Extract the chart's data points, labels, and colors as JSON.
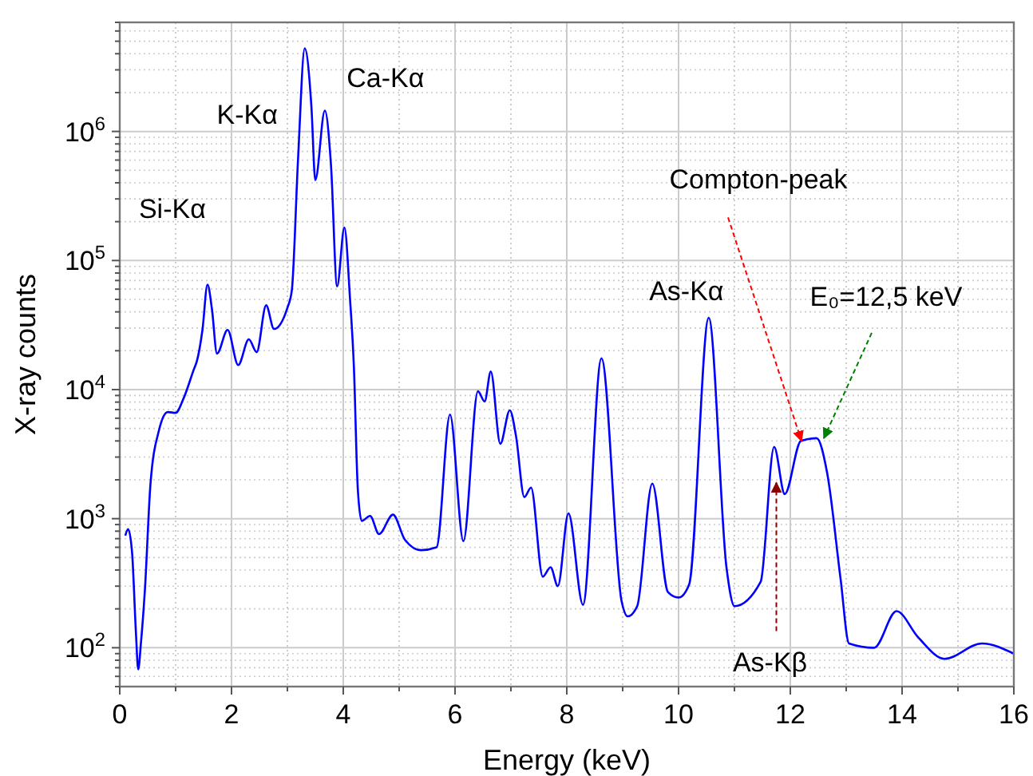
{
  "chart_data": {
    "type": "line",
    "xlabel": "Energy (keV)",
    "ylabel": "X-ray counts",
    "log": "y",
    "grid": true,
    "line_style": "solid",
    "xlim": [
      0,
      16
    ],
    "ylim": [
      50,
      7000000
    ],
    "xticks": [
      0,
      {
        "value": 1,
        "label": null
      },
      2,
      {
        "value": 3,
        "label": null
      },
      4,
      {
        "value": 5,
        "label": null
      },
      6,
      {
        "value": 7,
        "label": null
      },
      8,
      {
        "value": 9,
        "label": null
      },
      10,
      {
        "value": 11,
        "label": null
      },
      12,
      {
        "value": 13,
        "label": null
      },
      14,
      {
        "value": 15,
        "label": null
      },
      16
    ],
    "yticks": [
      {
        "value": 100,
        "label": "10$^{2}$"
      },
      {
        "value": 1000,
        "label": "10$^{3}$"
      },
      {
        "value": 10000,
        "label": "10$^{4}$"
      },
      {
        "value": 100000,
        "label": "10$^{5}$"
      },
      {
        "value": 1000000,
        "label": "10$^{6}$"
      }
    ],
    "series": [
      {
        "color": "#0000ff",
        "x": [
          0.1,
          0.15,
          0.22,
          0.29,
          0.33,
          0.38,
          0.45,
          0.55,
          0.7,
          0.86,
          1.0,
          1.14,
          1.33,
          1.38,
          1.48,
          1.57,
          1.65,
          1.74,
          1.93,
          2.12,
          2.31,
          2.45,
          2.62,
          2.76,
          3.0,
          3.08,
          3.19,
          3.31,
          3.43,
          3.5,
          3.67,
          3.78,
          3.89,
          4.02,
          4.12,
          4.19,
          4.26,
          4.33,
          4.48,
          4.64,
          4.89,
          5.1,
          5.39,
          5.67,
          5.91,
          6.15,
          6.41,
          6.53,
          6.64,
          6.81,
          6.98,
          7.09,
          7.24,
          7.36,
          7.57,
          7.71,
          7.84,
          8.03,
          8.29,
          8.62,
          8.98,
          9.09,
          9.26,
          9.53,
          9.81,
          10.0,
          10.19,
          10.54,
          10.86,
          11.0,
          11.47,
          11.71,
          11.9,
          12.19,
          12.47,
          12.66,
          12.9,
          13.05,
          13.5,
          13.9,
          14.29,
          14.76,
          15.43,
          16.0
        ],
        "values": [
          740,
          830,
          550,
          130,
          68,
          110,
          280,
          1860,
          4800,
          6700,
          6600,
          8500,
          14500,
          16600,
          29000,
          65000,
          42000,
          19000,
          29000,
          15500,
          24500,
          19500,
          45000,
          29500,
          43000,
          59000,
          600000,
          4400000,
          1550000,
          420000,
          1450000,
          550000,
          63000,
          180000,
          51000,
          15000,
          1700,
          960,
          1050,
          760,
          1075,
          690,
          570,
          600,
          6400,
          670,
          9700,
          8100,
          13800,
          3800,
          6900,
          4400,
          1470,
          1740,
          355,
          420,
          300,
          1100,
          215,
          17500,
          230,
          175,
          210,
          1870,
          270,
          245,
          310,
          36000,
          410,
          210,
          325,
          3600,
          1550,
          4000,
          4200,
          2250,
          340,
          108,
          100,
          192,
          120,
          82,
          108,
          90
        ]
      }
    ],
    "annotations": [
      {
        "text": "Si-Kα",
        "x": 1.57,
        "y": 65000
      },
      {
        "text": "K-Kα",
        "x": 3.31,
        "y": 4400000
      },
      {
        "text": "Ca-Kα",
        "x": 3.67,
        "y": 1450000
      },
      {
        "text": "As-Kα",
        "x": 10.54,
        "y": 36000
      },
      {
        "text": "Compton-peak",
        "x": 12.2,
        "y": 4000
      },
      {
        "text": "E₀=12,5 keV",
        "x": 12.6,
        "y": 4200
      },
      {
        "text": "As-Kβ",
        "x": 11.75,
        "y": 1900
      }
    ]
  }
}
